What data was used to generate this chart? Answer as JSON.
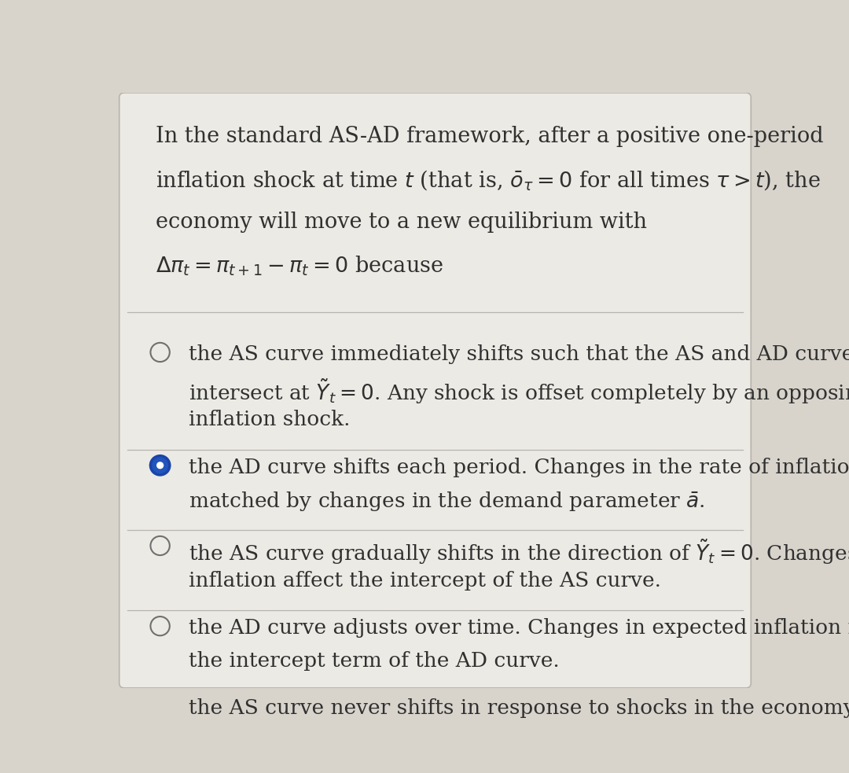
{
  "background_color": "#d8d4cc",
  "card_color": "#eceae4",
  "border_color": "#b8b4ac",
  "text_color": "#303030",
  "question_lines": [
    "In the standard AS-AD framework, after a positive one-period",
    "inflation shock at time $t$ (that is, $\\bar{o}_{\\tau} = 0$ for all times $\\tau > t$), the",
    "economy will move to a new equilibrium with",
    "$\\Delta\\pi_t = \\pi_{t+1} - \\pi_t = 0$ because"
  ],
  "options": [
    {
      "selected": false,
      "lines": [
        "the AS curve immediately shifts such that the AS and AD curves",
        "intersect at $\\tilde{Y}_t = 0$. Any shock is offset completely by an opposing",
        "inflation shock."
      ]
    },
    {
      "selected": true,
      "lines": [
        "the AD curve shifts each period. Changes in the rate of inflation are",
        "matched by changes in the demand parameter $\\bar{a}$."
      ]
    },
    {
      "selected": false,
      "lines": [
        "the AS curve gradually shifts in the direction of $\\tilde{Y}_t = 0$. Changes in",
        "inflation affect the intercept of the AS curve."
      ]
    },
    {
      "selected": false,
      "lines": [
        "the AD curve adjusts over time. Changes in expected inflation move",
        "the intercept term of the AD curve."
      ]
    },
    {
      "selected": false,
      "lines": [
        "the AS curve never shifts in response to shocks in the economy."
      ]
    }
  ],
  "font_size_question": 19.5,
  "font_size_option": 19.0,
  "radio_unselected_edge": "#707070",
  "radio_selected_fill": "#2255bb",
  "radio_selected_edge": "#1a44aa",
  "divider_color": "#b8b4b0"
}
